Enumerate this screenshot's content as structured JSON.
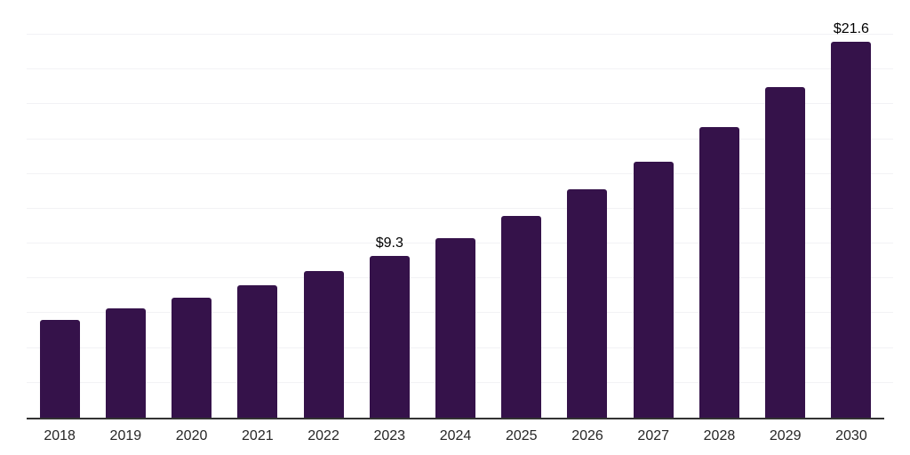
{
  "chart_data": {
    "type": "bar",
    "title": "",
    "categories": [
      "2018",
      "2019",
      "2020",
      "2021",
      "2022",
      "2023",
      "2024",
      "2025",
      "2026",
      "2027",
      "2028",
      "2029",
      "2030"
    ],
    "values": [
      5.6,
      6.3,
      6.9,
      7.6,
      8.4,
      9.3,
      10.3,
      11.6,
      13.1,
      14.7,
      16.7,
      19.0,
      21.6
    ],
    "data_labels": [
      "",
      "",
      "",
      "",
      "",
      "$9.3",
      "",
      "",
      "",
      "",
      "",
      "",
      "$21.6"
    ],
    "xlabel": "",
    "ylabel": "",
    "ylim": [
      0,
      24
    ],
    "gridline_step": 2,
    "grid": "horizontal-only",
    "legend_position": "none",
    "y_axis_labels_visible": false,
    "colors": {
      "bar": "#35124A",
      "gridline": "#F2F2F5",
      "axis_line": "#333333",
      "tick_label": "#262626",
      "data_label": "#000000",
      "background": "#FFFFFF"
    }
  }
}
